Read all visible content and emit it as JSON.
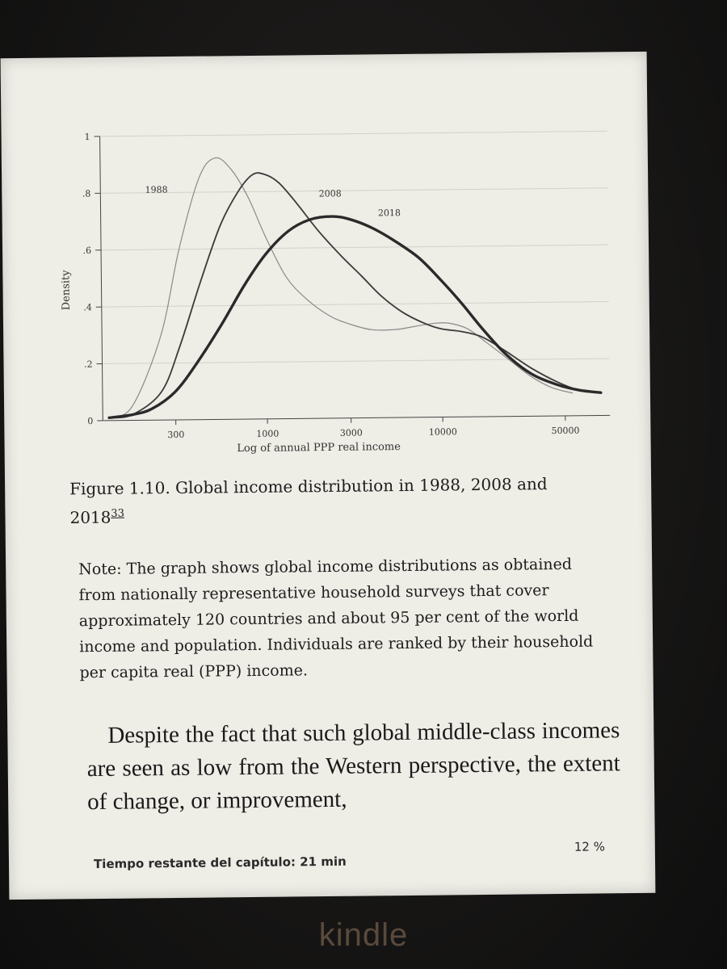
{
  "device": {
    "brand": "kindle"
  },
  "page": {
    "caption_main": "Figure 1.10. Global income distribution in 1988, 2008 and 2018",
    "caption_ref": "33",
    "note": "Note: The graph shows global income distributions as obtained from nationally representative household surveys that cover approximately 120 countries and about 95 per cent of the world income and population. Individuals are ranked by their household per capita real (PPP) income.",
    "body": "Despite the fact that such global middle-class incomes are seen as low from the Western perspective, the extent of change, or improvement,",
    "footer_time": "Tiempo restante del capítulo: 21 min",
    "footer_percent": "12 %"
  },
  "chart_data": {
    "type": "line",
    "xlabel": "Log of annual PPP real income",
    "ylabel": "Density",
    "x_scale": "log",
    "xlim": [
      115,
      90000
    ],
    "ylim": [
      0,
      1
    ],
    "x_ticks": [
      300,
      1000,
      3000,
      10000,
      50000
    ],
    "x_tick_labels": [
      "300",
      "1000",
      "3000",
      "10000",
      "50000"
    ],
    "y_ticks": [
      0,
      0.2,
      0.4,
      0.6,
      0.8,
      1
    ],
    "y_tick_labels": [
      "0",
      ".2",
      ".4",
      ".6",
      ".8",
      "1"
    ],
    "grid": "horizontal",
    "series": [
      {
        "name": "1988",
        "color": "#8a8a8a",
        "x": [
          125,
          170,
          250,
          320,
          420,
          520,
          640,
          800,
          1000,
          1300,
          1700,
          2300,
          3000,
          4000,
          5500,
          7000,
          9000,
          11000,
          14000,
          18000,
          24000,
          32000,
          42000,
          55000
        ],
        "y": [
          0.01,
          0.05,
          0.3,
          0.6,
          0.85,
          0.92,
          0.88,
          0.78,
          0.64,
          0.5,
          0.42,
          0.36,
          0.33,
          0.31,
          0.31,
          0.32,
          0.33,
          0.33,
          0.31,
          0.26,
          0.2,
          0.14,
          0.1,
          0.08
        ]
      },
      {
        "name": "2008",
        "color": "#3a3a3a",
        "x": [
          125,
          170,
          250,
          320,
          420,
          550,
          700,
          850,
          1000,
          1200,
          1500,
          2000,
          2700,
          3500,
          4500,
          6000,
          8000,
          10000,
          13000,
          17000,
          23000,
          32000,
          45000,
          60000,
          80000
        ],
        "y": [
          0.01,
          0.02,
          0.1,
          0.26,
          0.48,
          0.68,
          0.8,
          0.86,
          0.86,
          0.83,
          0.76,
          0.66,
          0.57,
          0.5,
          0.43,
          0.37,
          0.33,
          0.31,
          0.3,
          0.28,
          0.23,
          0.17,
          0.12,
          0.09,
          0.08
        ]
      },
      {
        "name": "2018",
        "color": "#2a2a2a",
        "x": [
          125,
          170,
          220,
          300,
          400,
          550,
          750,
          1000,
          1350,
          1800,
          2400,
          3000,
          4000,
          5500,
          7500,
          10000,
          13000,
          17000,
          23000,
          32000,
          45000,
          60000,
          80000
        ],
        "y": [
          0.01,
          0.02,
          0.04,
          0.1,
          0.2,
          0.33,
          0.47,
          0.58,
          0.66,
          0.7,
          0.71,
          0.7,
          0.67,
          0.62,
          0.56,
          0.48,
          0.4,
          0.31,
          0.22,
          0.15,
          0.11,
          0.09,
          0.08
        ]
      }
    ],
    "series_labels": [
      "1988",
      "2008",
      "2018"
    ]
  }
}
